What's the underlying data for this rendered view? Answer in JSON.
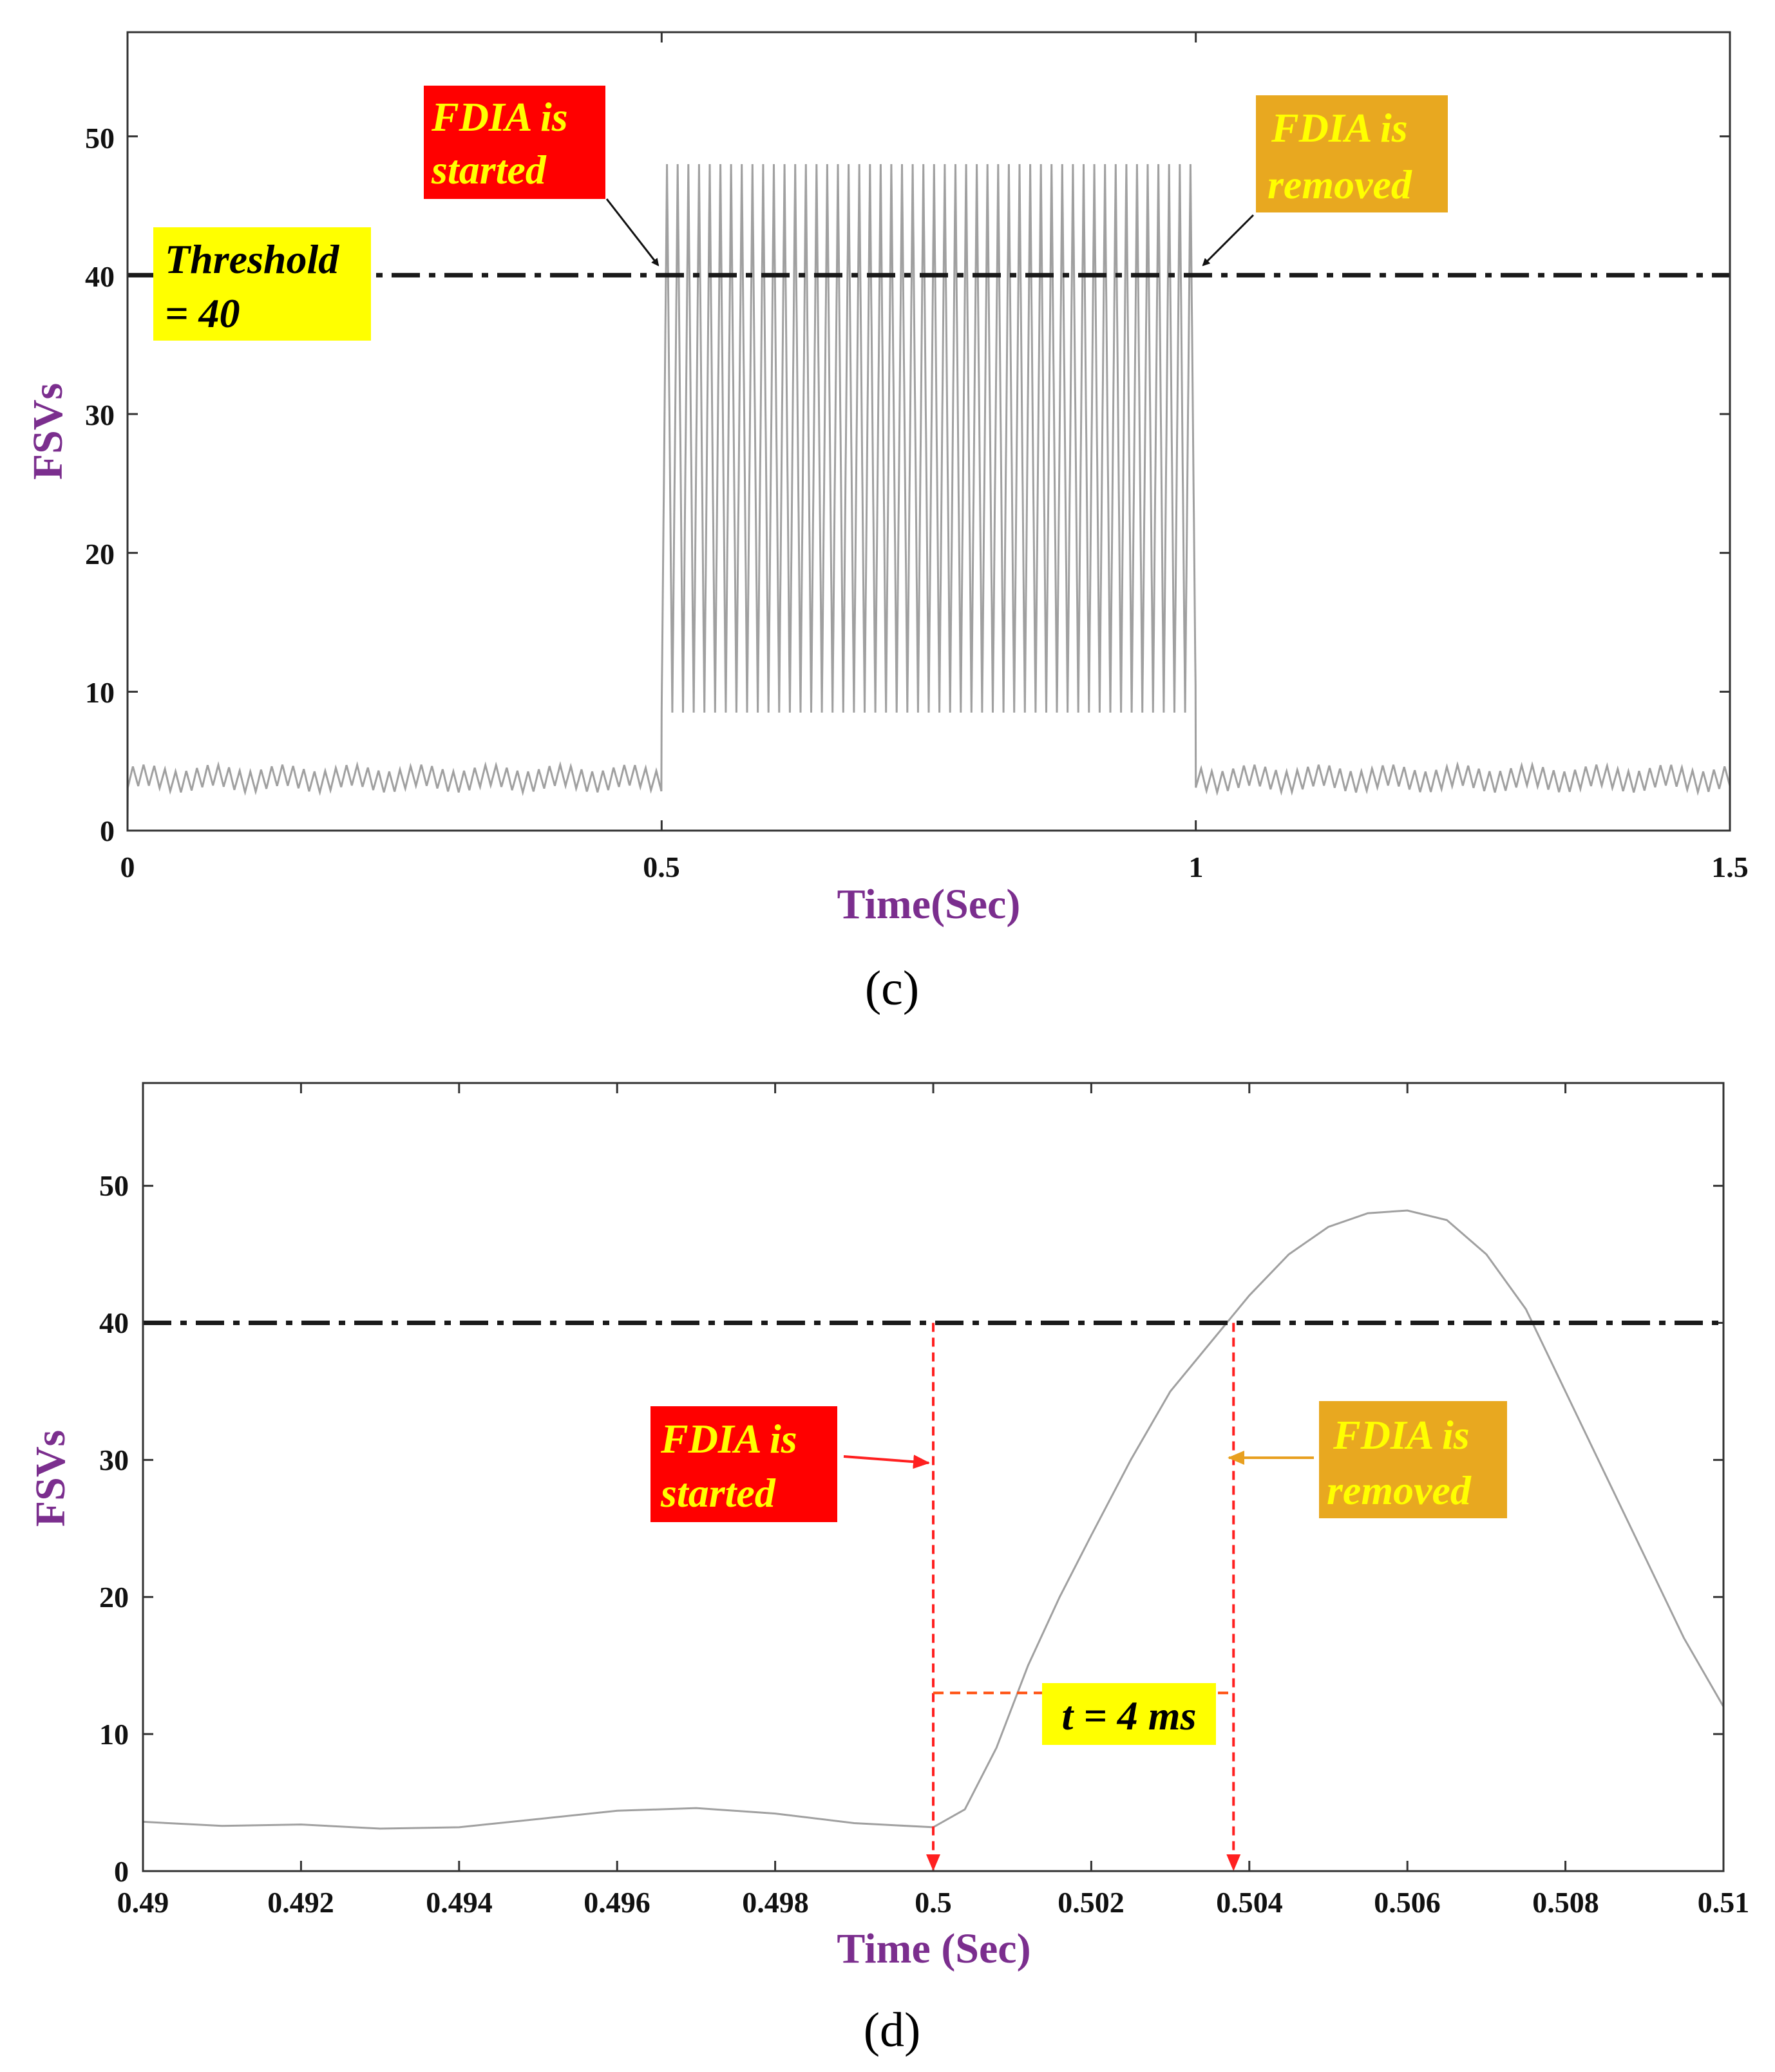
{
  "colors": {
    "axis_label": "#7b2e8e",
    "signal": "#a0a0a0",
    "threshold": "#1a1a1a",
    "red_box": "#ff0000",
    "orange_box": "#e8a820",
    "yellow_box": "#ffff00",
    "ann_text_yellow": "#ffff00",
    "ann_text_black": "#000000",
    "marker_red": "#ff2020",
    "measure_orange": "#ff5010",
    "arrow_orange": "#e8a020"
  },
  "chart_data": [
    {
      "id": "c",
      "type": "line",
      "caption": "(c)",
      "xlabel": "Time(Sec)",
      "ylabel": "FSVs",
      "xlim": [
        0,
        1.5
      ],
      "ylim": [
        0,
        57.5
      ],
      "xticks": [
        0,
        0.5,
        1,
        1.5
      ],
      "xtick_labels": [
        "0",
        "0.5",
        "1",
        "1.5"
      ],
      "yticks": [
        0,
        10,
        20,
        30,
        40,
        50
      ],
      "ytick_labels": [
        "0",
        "10",
        "20",
        "30",
        "40",
        "50"
      ],
      "series": [
        {
          "name": "FSVs",
          "description": "Baseline ripple 3 to 4.5 before t=0.5 and after t=1.0; fast oscillation between ~8.5 and ~48 during attack",
          "baseline_range": [
            3,
            4.5
          ],
          "attack_window": [
            0.5,
            1.0
          ],
          "attack_range": [
            8.5,
            48
          ],
          "oscillation_period_s": 0.01
        }
      ],
      "threshold": {
        "value": 40,
        "label_line1": "Threshold",
        "label_line2": "= 40"
      },
      "annotations": [
        {
          "line1": "FDIA is",
          "line2": "started",
          "x": 0.5,
          "y": 40
        },
        {
          "line1": "FDIA is",
          "line2": "removed",
          "x": 1.0,
          "y": 40
        }
      ]
    },
    {
      "id": "d",
      "type": "line",
      "caption": "(d)",
      "xlabel": "Time (Sec)",
      "ylabel": "FSVs",
      "xlim": [
        0.49,
        0.51
      ],
      "ylim": [
        0,
        57.5
      ],
      "xticks": [
        0.49,
        0.492,
        0.494,
        0.496,
        0.498,
        0.5,
        0.502,
        0.504,
        0.506,
        0.508,
        0.51
      ],
      "xtick_labels": [
        "0.49",
        "0.492",
        "0.494",
        "0.496",
        "0.498",
        "0.5",
        "0.502",
        "0.504",
        "0.506",
        "0.508",
        "0.51"
      ],
      "yticks": [
        0,
        10,
        20,
        30,
        40,
        50
      ],
      "ytick_labels": [
        "0",
        "10",
        "20",
        "30",
        "40",
        "50"
      ],
      "series": [
        {
          "name": "FSVs",
          "x": [
            0.49,
            0.491,
            0.492,
            0.493,
            0.494,
            0.495,
            0.496,
            0.497,
            0.498,
            0.499,
            0.5,
            0.5004,
            0.5008,
            0.5012,
            0.5016,
            0.502,
            0.5025,
            0.503,
            0.5035,
            0.504,
            0.5045,
            0.505,
            0.5055,
            0.506,
            0.5065,
            0.507,
            0.5075,
            0.508,
            0.5085,
            0.509,
            0.5095,
            0.51
          ],
          "y": [
            3.6,
            3.3,
            3.4,
            3.1,
            3.2,
            3.8,
            4.4,
            4.6,
            4.2,
            3.5,
            3.2,
            4.5,
            9,
            15,
            20,
            24.5,
            30,
            35,
            38.5,
            42,
            45,
            47,
            48,
            48.2,
            47.5,
            45,
            41,
            35,
            29,
            23,
            17,
            12
          ]
        }
      ],
      "threshold": {
        "value": 40
      },
      "markers": [
        {
          "x": 0.5,
          "label_line1": "FDIA is",
          "label_line2": "started"
        },
        {
          "x": 0.5038,
          "label_line1": "FDIA is",
          "label_line2": "removed"
        }
      ],
      "measure": {
        "from_x": 0.5,
        "to_x": 0.5038,
        "y": 13,
        "label": "t = 4 ms"
      }
    }
  ]
}
